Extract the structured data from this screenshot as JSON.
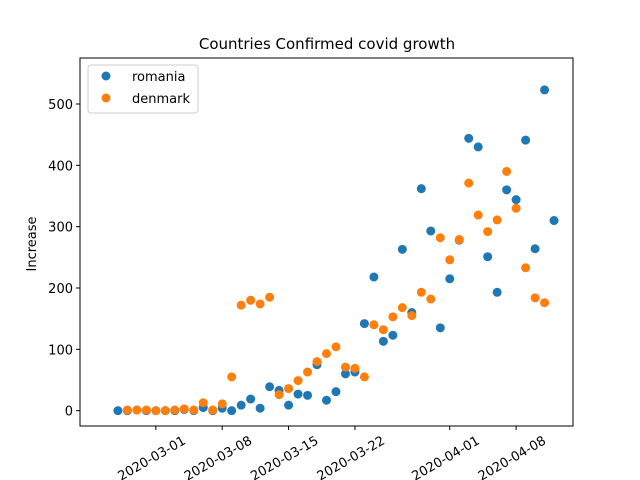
{
  "chart_data": {
    "type": "scatter",
    "title": "Countries Confirmed covid growth",
    "y_label": "Increase",
    "x": [
      "2020-02-26",
      "2020-02-27",
      "2020-02-28",
      "2020-02-29",
      "2020-03-01",
      "2020-03-02",
      "2020-03-03",
      "2020-03-04",
      "2020-03-05",
      "2020-03-06",
      "2020-03-07",
      "2020-03-08",
      "2020-03-09",
      "2020-03-10",
      "2020-03-11",
      "2020-03-12",
      "2020-03-13",
      "2020-03-14",
      "2020-03-15",
      "2020-03-16",
      "2020-03-17",
      "2020-03-18",
      "2020-03-19",
      "2020-03-20",
      "2020-03-21",
      "2020-03-22",
      "2020-03-23",
      "2020-03-24",
      "2020-03-25",
      "2020-03-26",
      "2020-03-27",
      "2020-03-28",
      "2020-03-29",
      "2020-03-30",
      "2020-03-31",
      "2020-04-01",
      "2020-04-02",
      "2020-04-03",
      "2020-04-04",
      "2020-04-05",
      "2020-04-06",
      "2020-04-07",
      "2020-04-08",
      "2020-04-09",
      "2020-04-10",
      "2020-04-11",
      "2020-04-12"
    ],
    "series": [
      {
        "name": "romania",
        "color": "#1f77b4",
        "values": [
          0,
          0,
          1,
          0,
          0,
          0,
          0,
          2,
          0,
          5,
          0,
          4,
          0,
          9,
          19,
          4,
          39,
          33,
          9,
          27,
          25,
          75,
          17,
          31,
          60,
          63,
          142,
          218,
          113,
          123,
          263,
          160,
          362,
          293,
          135,
          215,
          278,
          444,
          430,
          251,
          193,
          360,
          344,
          441,
          264,
          523,
          310
        ]
      },
      {
        "name": "denmark",
        "color": "#ff7f0e",
        "values": [
          null,
          1,
          1,
          1,
          0,
          0,
          1,
          3,
          1,
          13,
          1,
          11,
          55,
          172,
          180,
          174,
          185,
          26,
          36,
          49,
          63,
          80,
          93,
          104,
          71,
          69,
          55,
          140,
          132,
          153,
          168,
          155,
          193,
          182,
          282,
          246,
          279,
          371,
          319,
          292,
          311,
          390,
          330,
          233,
          184,
          176,
          null
        ]
      }
    ],
    "xlim": [
      "2020-02-22",
      "2020-04-14"
    ],
    "xticks": [
      "2020-03-01",
      "2020-03-08",
      "2020-03-15",
      "2020-03-22",
      "2020-04-01",
      "2020-04-08"
    ],
    "ylim": [
      -25,
      575
    ],
    "yticks": [
      0,
      100,
      200,
      300,
      400,
      500
    ],
    "legend": "upper left"
  }
}
